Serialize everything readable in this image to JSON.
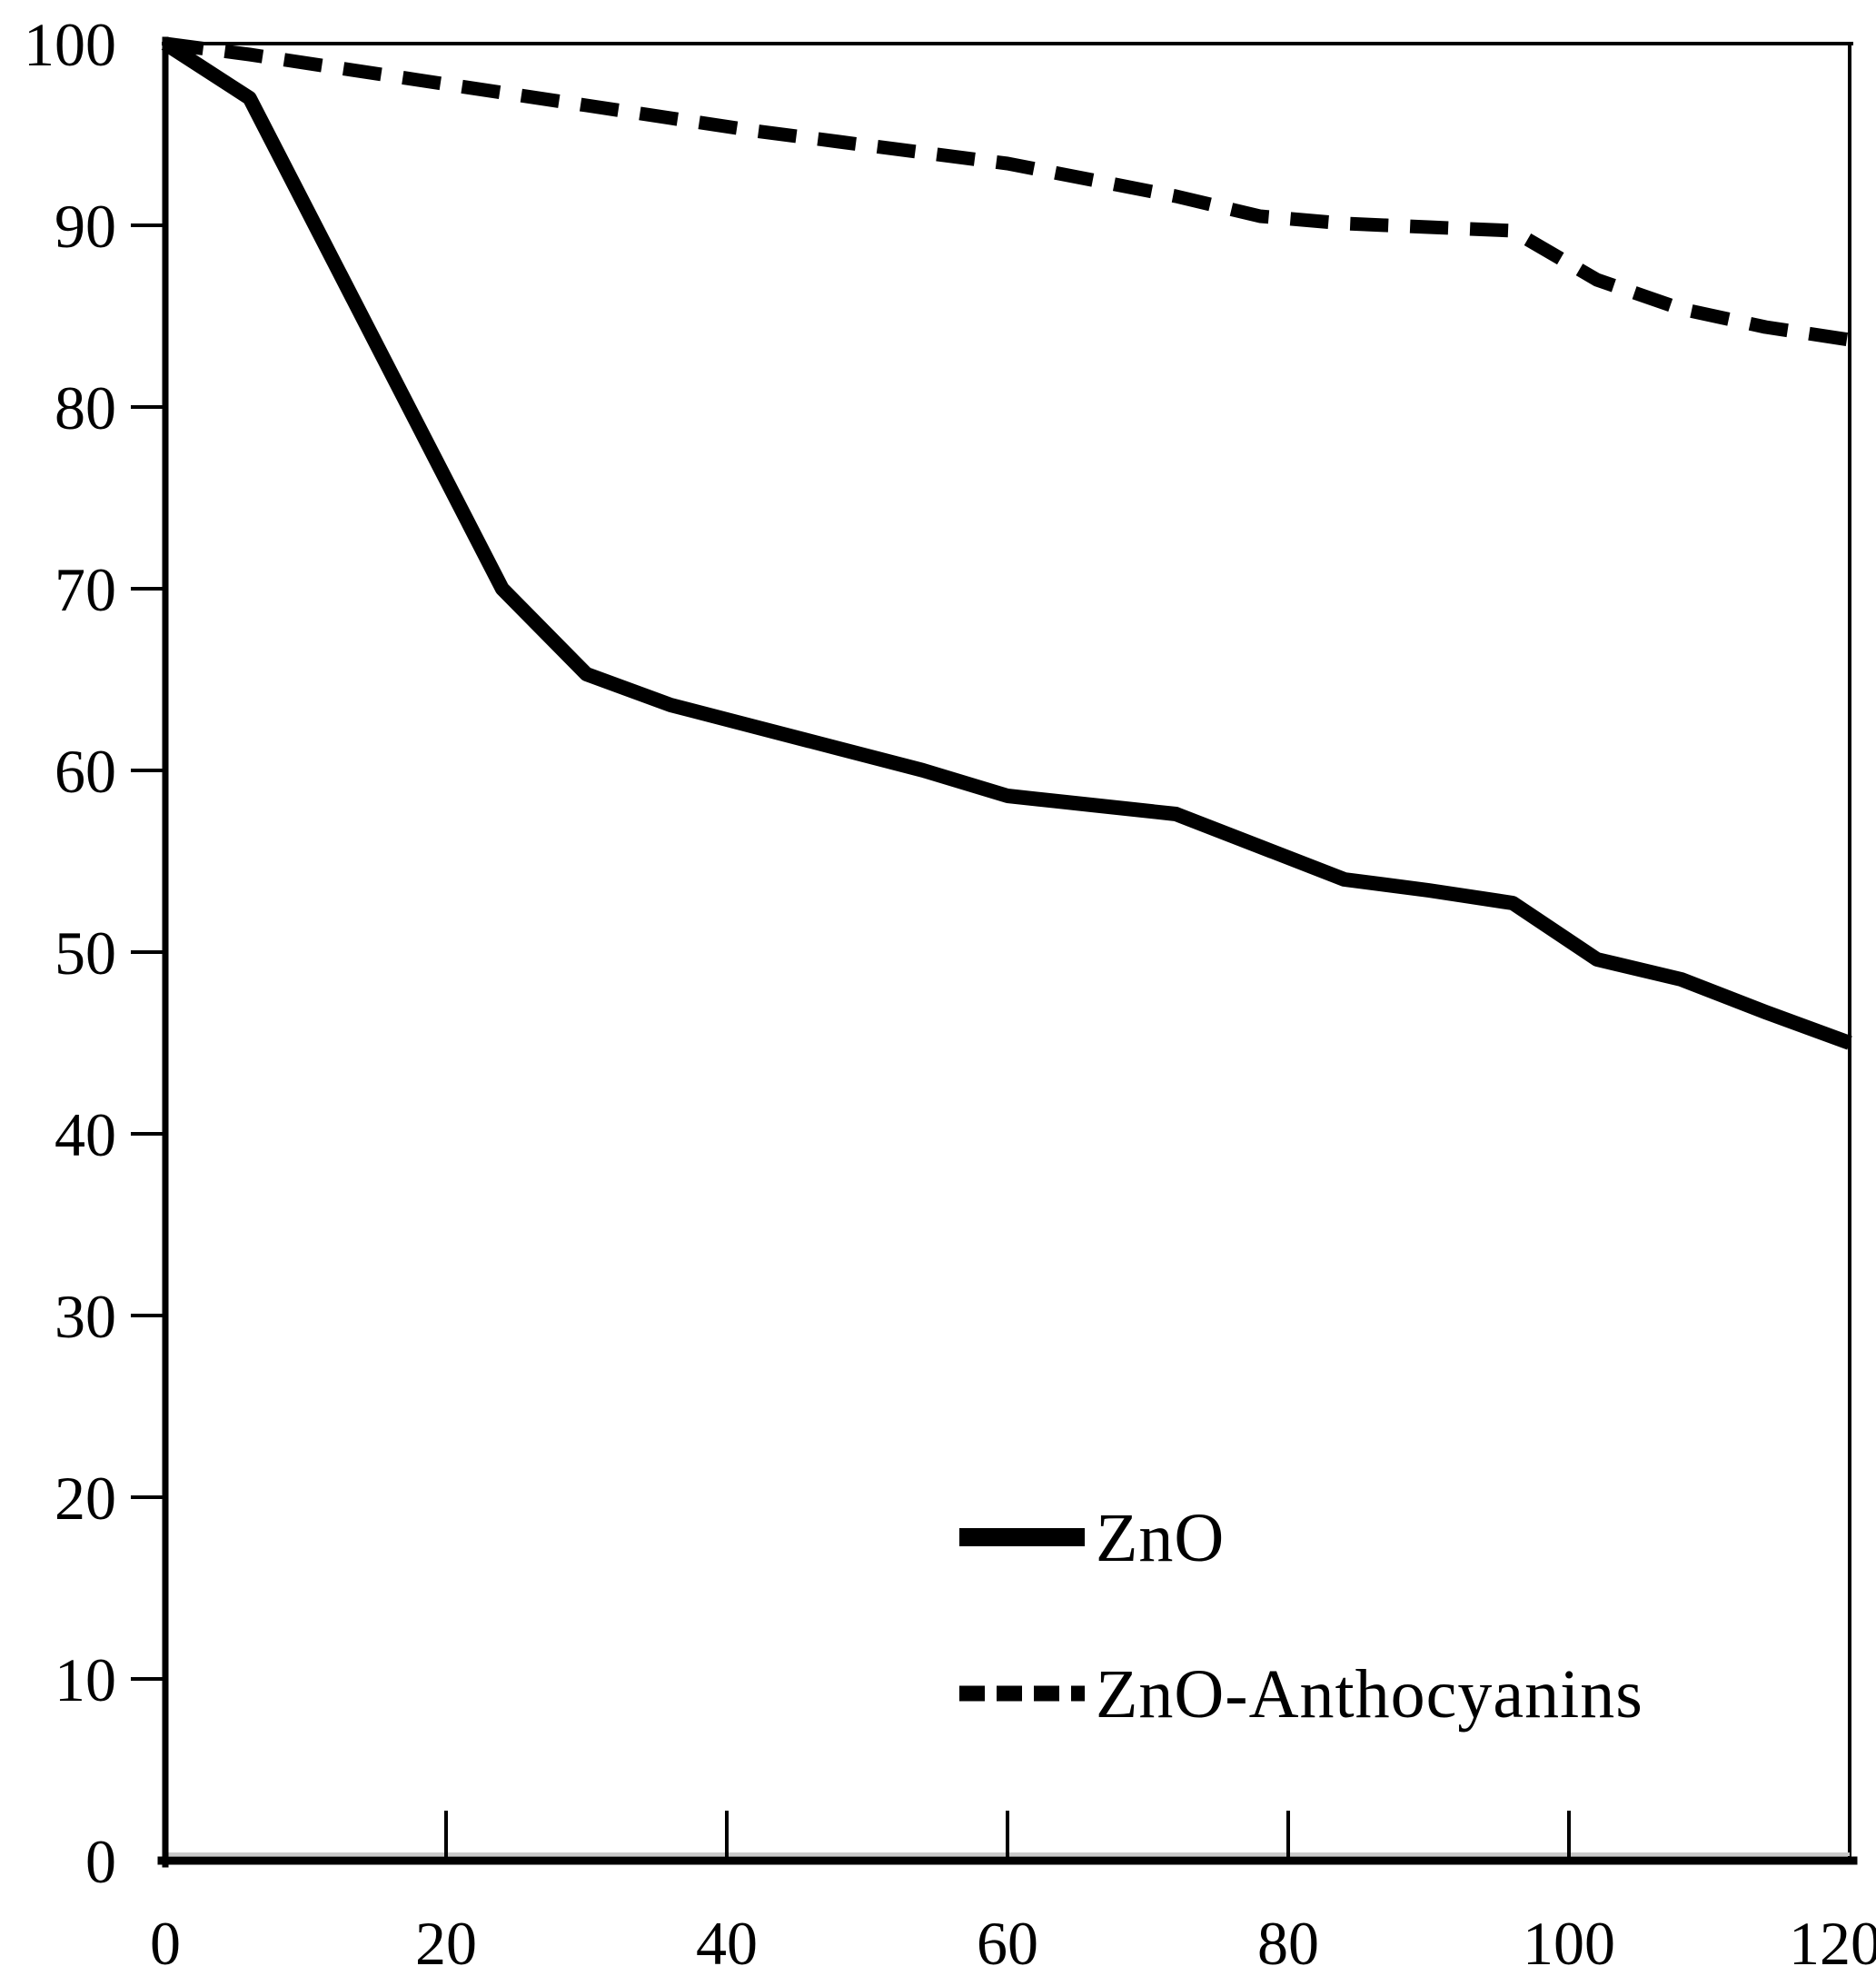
{
  "chart_data": {
    "type": "line",
    "title": "",
    "xlabel": "",
    "ylabel": "",
    "xlim": [
      0,
      120
    ],
    "ylim": [
      0,
      100
    ],
    "x_ticks": [
      0,
      20,
      40,
      60,
      80,
      100,
      120
    ],
    "y_ticks": [
      0,
      10,
      20,
      30,
      40,
      50,
      60,
      70,
      80,
      90,
      100
    ],
    "grid": false,
    "legend_position": "inside-lower-right",
    "x": [
      0,
      6,
      12,
      18,
      24,
      30,
      36,
      42,
      48,
      54,
      60,
      66,
      72,
      78,
      84,
      90,
      96,
      102,
      108,
      114,
      120
    ],
    "series": [
      {
        "name": "ZnO",
        "style": "solid",
        "color": "#000000",
        "values": [
          100,
          97,
          88,
          79,
          70,
          65.3,
          63.6,
          62.4,
          61.2,
          60.0,
          58.6,
          58.1,
          57.6,
          55.8,
          54.0,
          53.4,
          52.7,
          49.6,
          48.5,
          46.7,
          45.0
        ]
      },
      {
        "name": "ZnO-Anthocyanins",
        "style": "dashed",
        "color": "#000000",
        "values": [
          100,
          99.4,
          98.7,
          98.0,
          97.3,
          96.6,
          95.9,
          95.2,
          94.6,
          94.0,
          93.4,
          92.5,
          91.6,
          90.5,
          90.1,
          89.9,
          89.7,
          87.0,
          85.4,
          84.4,
          83.7
        ]
      }
    ]
  },
  "legend": {
    "items": [
      {
        "label": "ZnO",
        "swatch": "solid-line"
      },
      {
        "label": "ZnO-Anthocyanins",
        "swatch": "dashed-line"
      }
    ]
  },
  "colors": {
    "background": "#ffffff",
    "axis": "#000000",
    "axis_shadow": "#c9c9c9",
    "line": "#000000",
    "text": "#000000"
  }
}
